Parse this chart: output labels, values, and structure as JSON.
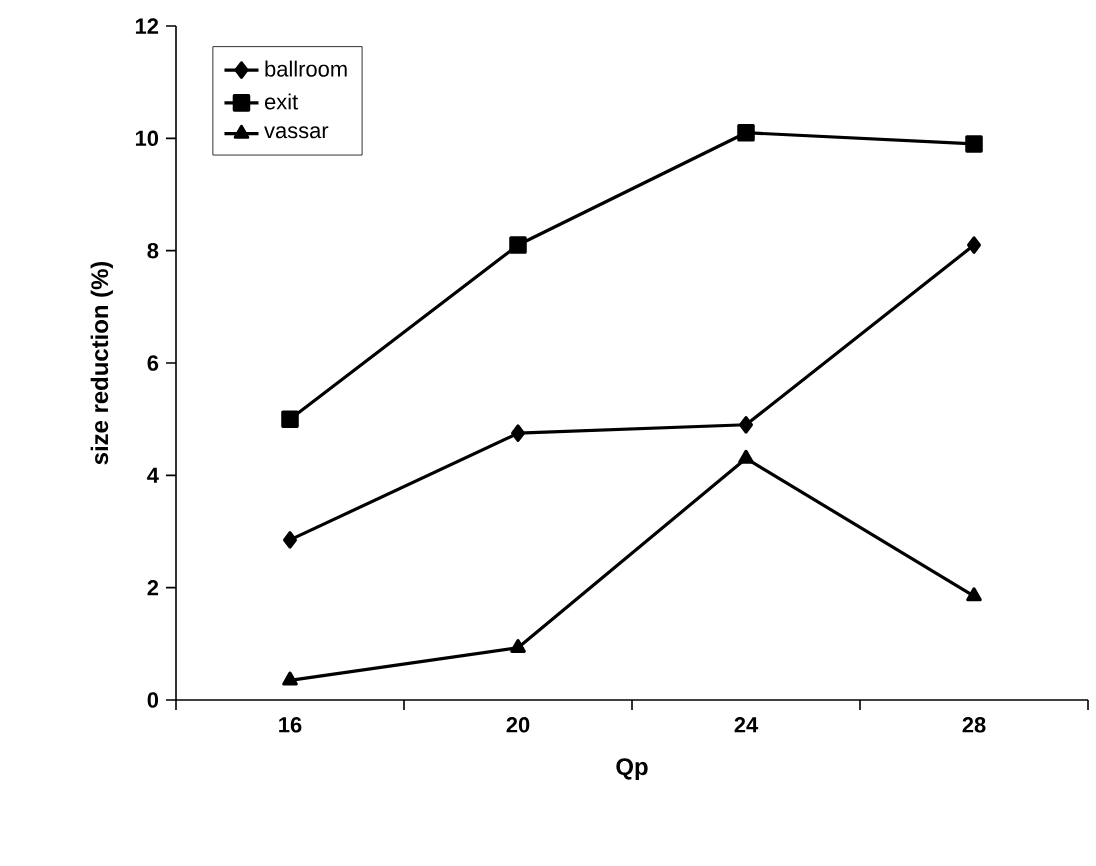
{
  "chart_data": {
    "type": "line",
    "xlabel": "Qp",
    "ylabel": "size reduction (%)",
    "categories": [
      "16",
      "20",
      "24",
      "28"
    ],
    "series": [
      {
        "name": "ballroom",
        "color": "#000000",
        "marker": "diamond",
        "values": [
          2.85,
          4.75,
          4.9,
          8.1
        ]
      },
      {
        "name": "exit",
        "color": "#000000",
        "marker": "square",
        "values": [
          5.0,
          8.1,
          10.1,
          9.9
        ]
      },
      {
        "name": "vassar",
        "color": "#000000",
        "marker": "triangle",
        "values": [
          0.35,
          0.93,
          4.3,
          1.85
        ]
      }
    ],
    "ylim": [
      0,
      12
    ],
    "yticks": [
      0,
      2,
      4,
      6,
      8,
      10,
      12
    ],
    "grid": false,
    "legend": "top left",
    "line_style": "solid"
  }
}
